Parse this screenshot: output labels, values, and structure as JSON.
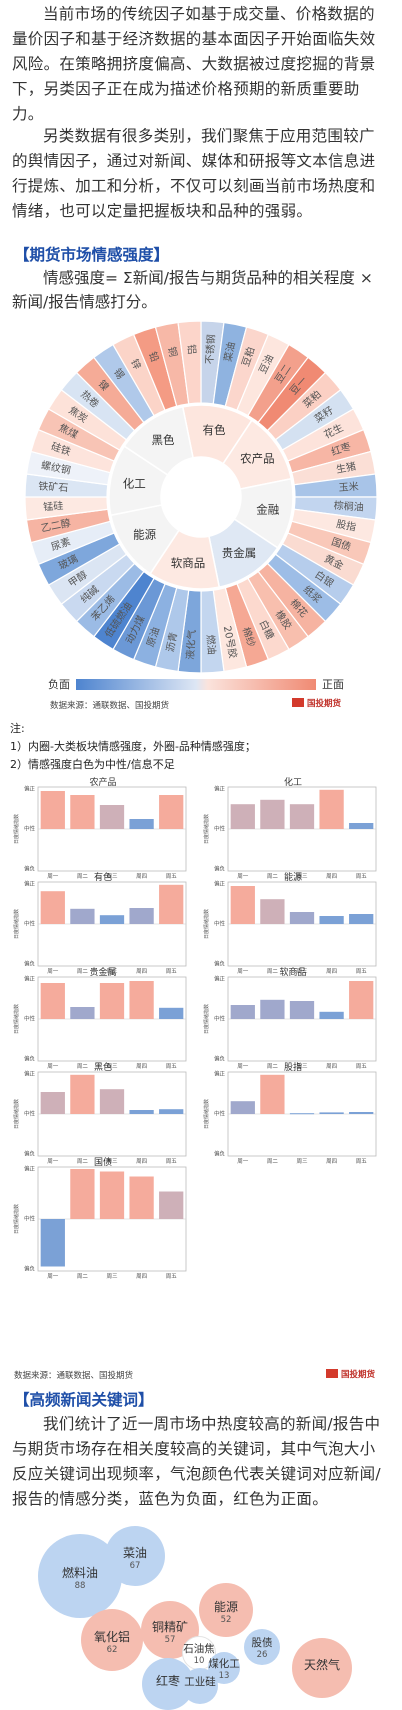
{
  "intro": {
    "p1": "当前市场的传统因子如基于成交量、价格数据的量价因子和基于经济数据的基本面因子开始面临失效风险。在策略拥挤度偏高、大数据被过度挖掘的背景下，另类因子正在成为描述价格预期的新质重要助力。",
    "p2": "另类数据有很多类别，我们聚焦于应用范围较广的舆情因子，通过对新闻、媒体和研报等文本信息进行提炼、加工和分析，不仅可以刻画当前市场热度和情绪，也可以定量把握板块和品种的强弱。"
  },
  "section1": {
    "title": "【期货市场情感强度】",
    "formula": "情感强度= Σ新闻/报告与期货品种的相关程度 × 新闻/报告情感打分。"
  },
  "sunburst": {
    "inner": [
      "有色",
      "农产品",
      "金融",
      "贵金属",
      "软商品",
      "能源",
      "化工",
      "黑色"
    ],
    "outer": [
      {
        "name": "不锈钢",
        "color": "#c6d4ea"
      },
      {
        "name": "菜油",
        "color": "#8fb3e0"
      },
      {
        "name": "豆粕",
        "color": "#fbd6cc"
      },
      {
        "name": "豆油",
        "color": "#fde6de"
      },
      {
        "name": "豆二",
        "color": "#f3a08c"
      },
      {
        "name": "豆一",
        "color": "#f08a73"
      },
      {
        "name": "菜粕",
        "color": "#fbd0c4"
      },
      {
        "name": "菜籽",
        "color": "#d4e1f1"
      },
      {
        "name": "花生",
        "color": "#fde3db"
      },
      {
        "name": "红枣",
        "color": "#f7b6a5"
      },
      {
        "name": "生猪",
        "color": "#fbdfd6"
      },
      {
        "name": "玉米",
        "color": "#a8c4e8"
      },
      {
        "name": "棕榈油",
        "color": "#c2d5ef"
      },
      {
        "name": "股指",
        "color": "#fde8e1"
      },
      {
        "name": "国债",
        "color": "#f9c8b9"
      },
      {
        "name": "黄金",
        "color": "#fadbd1"
      },
      {
        "name": "白银",
        "color": "#b6cdec"
      },
      {
        "name": "纸浆",
        "color": "#9dbde6"
      },
      {
        "name": "棉花",
        "color": "#f6b3a1"
      },
      {
        "name": "橡胶",
        "color": "#f8bfae"
      },
      {
        "name": "白糖",
        "color": "#fcd9ce"
      },
      {
        "name": "棉纱",
        "color": "#f5a894"
      },
      {
        "name": "20号胶",
        "color": "#fde7df"
      },
      {
        "name": "燃油",
        "color": "#c3d6ef"
      },
      {
        "name": "液化气",
        "color": "#7da6db"
      },
      {
        "name": "沥青",
        "color": "#aec8ea"
      },
      {
        "name": "原油",
        "color": "#8cb1e1"
      },
      {
        "name": "动力煤",
        "color": "#6b98d6"
      },
      {
        "name": "低硫燃油",
        "color": "#4e84cf"
      },
      {
        "name": "苯乙烯",
        "color": "#9bbbe5"
      },
      {
        "name": "纯碱",
        "color": "#c9d9f0"
      },
      {
        "name": "甲醇",
        "color": "#dbe5f3"
      },
      {
        "name": "玻璃",
        "color": "#7ea7dc"
      },
      {
        "name": "尿素",
        "color": "#e6edf7"
      },
      {
        "name": "乙二醇",
        "color": "#f6b4a3"
      },
      {
        "name": "锰硅",
        "color": "#fde9e2"
      },
      {
        "name": "铁矿石",
        "color": "#dbe6f4"
      },
      {
        "name": "螺纹钢",
        "color": "#eef2f9"
      },
      {
        "name": "硅铁",
        "color": "#fde4dc"
      },
      {
        "name": "焦煤",
        "color": "#f8c4b5"
      },
      {
        "name": "焦炭",
        "color": "#fde2d9"
      },
      {
        "name": "热卷",
        "color": "#d8e4f3"
      },
      {
        "name": "镍",
        "color": "#f5ab97"
      },
      {
        "name": "锡",
        "color": "#b0c9ea"
      },
      {
        "name": "锌",
        "color": "#fbd4c8"
      },
      {
        "name": "铅",
        "color": "#f49b84"
      },
      {
        "name": "铜",
        "color": "#f7b8a7"
      },
      {
        "name": "铝",
        "color": "#fcd5ca"
      }
    ],
    "legend_neg": "负面",
    "legend_pos": "正面",
    "source": "数据来源：通联数据、国投期货",
    "logo_text": "国投期货"
  },
  "notes": {
    "label": "注:",
    "n1": "1）内圈-大类板块情感强度，外圈-品种情感强度；",
    "n2": "2）情感强度白色为中性/信息不足"
  },
  "bar_charts": {
    "ylabel": "日度情绪指数",
    "y_top": "偏正",
    "y_mid": "中性",
    "y_bot": "偏负",
    "days": [
      "周一",
      "周二",
      "周三",
      "周四",
      "周五"
    ],
    "source": "数据来源：通联数据、国投期货",
    "logo_text": "国投期货"
  },
  "chart_data": [
    {
      "type": "bar",
      "title": "农产品",
      "categories": [
        "周一",
        "周二",
        "周三",
        "周四",
        "周五"
      ],
      "values": [
        0.95,
        0.85,
        0.6,
        0.25,
        0.85
      ],
      "ylim": [
        -1,
        1
      ]
    },
    {
      "type": "bar",
      "title": "化工",
      "categories": [
        "周一",
        "周二",
        "周三",
        "周四",
        "周五"
      ],
      "values": [
        0.62,
        0.73,
        0.62,
        0.98,
        0.15
      ],
      "ylim": [
        -1,
        1
      ]
    },
    {
      "type": "bar",
      "title": "有色",
      "categories": [
        "周一",
        "周二",
        "周三",
        "周四",
        "周五"
      ],
      "values": [
        0.82,
        0.38,
        0.22,
        0.4,
        0.98
      ],
      "ylim": [
        -1,
        1
      ]
    },
    {
      "type": "bar",
      "title": "能源",
      "categories": [
        "周一",
        "周二",
        "周三",
        "周四",
        "周五"
      ],
      "values": [
        0.95,
        0.62,
        0.3,
        0.2,
        0.25
      ],
      "ylim": [
        -1,
        1
      ]
    },
    {
      "type": "bar",
      "title": "贵金属",
      "categories": [
        "周一",
        "周二",
        "周三",
        "周四",
        "周五"
      ],
      "values": [
        0.9,
        0.3,
        0.9,
        0.95,
        0.28
      ],
      "ylim": [
        -1,
        1
      ]
    },
    {
      "type": "bar",
      "title": "软商品",
      "categories": [
        "周一",
        "周二",
        "周三",
        "周四",
        "周五"
      ],
      "values": [
        0.35,
        0.48,
        0.45,
        0.18,
        0.95
      ],
      "ylim": [
        -1,
        1
      ]
    },
    {
      "type": "bar",
      "title": "黑色",
      "categories": [
        "周一",
        "周二",
        "周三",
        "周四",
        "周五"
      ],
      "values": [
        0.55,
        0.98,
        0.62,
        0.1,
        0.12
      ],
      "ylim": [
        -1,
        1
      ]
    },
    {
      "type": "bar",
      "title": "股指",
      "categories": [
        "周一",
        "周二",
        "周三",
        "周四",
        "周五"
      ],
      "values": [
        0.32,
        0.98,
        0.02,
        0.04,
        0.05
      ],
      "ylim": [
        -1,
        1
      ]
    },
    {
      "type": "bar",
      "title": "国债",
      "categories": [
        "周一",
        "周二",
        "周三",
        "周四",
        "周五"
      ],
      "values": [
        -0.95,
        1.0,
        0.95,
        0.85,
        0.55
      ],
      "ylim": [
        -1,
        1
      ]
    }
  ],
  "section2": {
    "title": "【高频新闻关键词】",
    "p": "我们统计了近一周市场中热度较高的新闻/报告中与期货市场存在相关度较高的关键词，其中气泡大小反应关键词出现频率，气泡颜色代表关键词对应新闻/报告的情感分类，蓝色为负面，红色为正面。"
  },
  "bubbles": [
    {
      "name": "燃料油",
      "value": "88",
      "color": "#bcd4f1"
    },
    {
      "name": "菜油",
      "value": "67",
      "color": "#bcd4f1"
    },
    {
      "name": "氧化铝",
      "value": "62",
      "color": "#f5bdb0"
    },
    {
      "name": "铜精矿",
      "value": "57",
      "color": "#f5bdb0"
    },
    {
      "name": "能源",
      "value": "52",
      "color": "#f5bdb0"
    },
    {
      "name": "股债",
      "value": "26",
      "color": "#bcd4f1"
    },
    {
      "name": "天然气",
      "value": "",
      "color": "#f5bdb0"
    },
    {
      "name": "石油焦",
      "value": "10",
      "color": "#ffffff"
    },
    {
      "name": "煤化工",
      "value": "13",
      "color": "#bcd4f1"
    },
    {
      "name": "红枣",
      "value": "",
      "color": "#bcd4f1"
    },
    {
      "name": "工业硅",
      "value": "",
      "color": "#bcd4f1"
    }
  ]
}
